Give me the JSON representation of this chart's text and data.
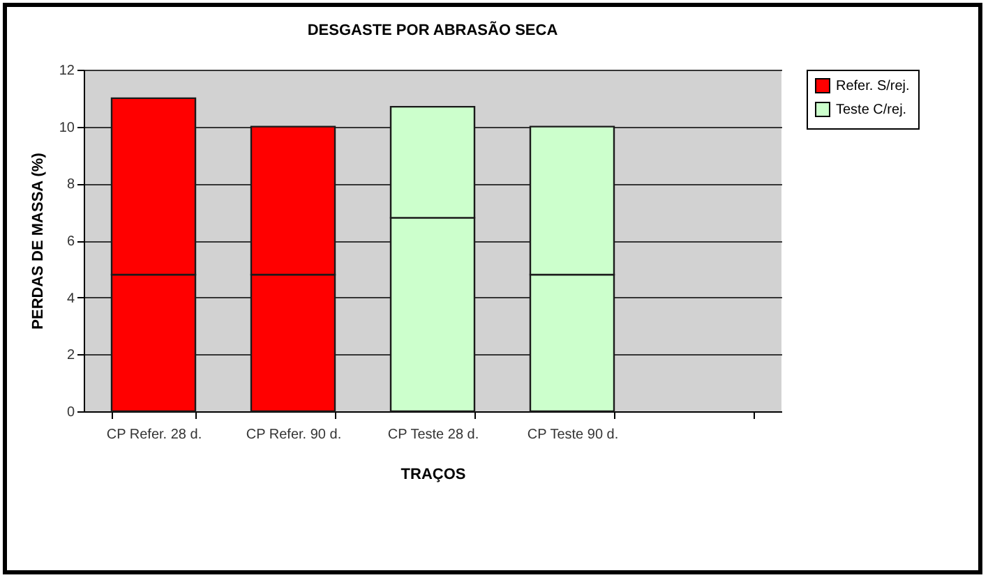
{
  "chart_data": {
    "type": "bar",
    "title": "DESGASTE POR ABRASÃO SECA",
    "xlabel": "TRAÇOS",
    "ylabel": "PERDAS DE MASSA (%)",
    "categories": [
      "CP Refer. 28 d.",
      "CP Refer. 90 d.",
      "CP Teste 28 d.",
      "CP Teste 90 d.",
      null
    ],
    "stacked": true,
    "series": [
      {
        "name": "Refer. S/rej.",
        "color": "#ff0000",
        "values": [
          4.8,
          4.8,
          null,
          null,
          null
        ]
      },
      {
        "color": "#ff0000",
        "values": [
          6.2,
          5.2,
          null,
          null,
          null
        ]
      },
      {
        "name": "Teste C/rej.",
        "color": "#ccffcc",
        "values": [
          null,
          null,
          6.8,
          4.8,
          null
        ]
      },
      {
        "color": "#ccffcc",
        "values": [
          null,
          null,
          3.9,
          5.2,
          null
        ]
      }
    ],
    "ylim": [
      0,
      12
    ],
    "yticks": [
      0,
      2,
      4,
      6,
      8,
      10,
      12
    ],
    "grid": "y",
    "legend": "right"
  }
}
